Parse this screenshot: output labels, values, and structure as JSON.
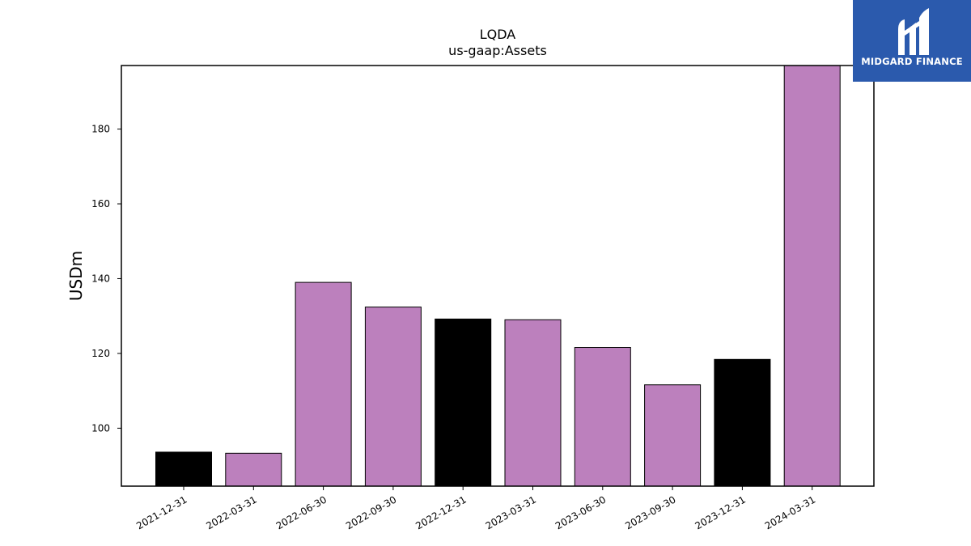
{
  "chart_data": {
    "type": "bar",
    "title": "LQDA",
    "subtitle": "us-gaap:Assets",
    "xlabel": "",
    "ylabel": "USDm",
    "categories": [
      "2021-12-31",
      "2022-03-31",
      "2022-06-30",
      "2022-09-30",
      "2022-12-31",
      "2023-03-31",
      "2023-06-30",
      "2023-09-30",
      "2023-12-31",
      "2024-03-31"
    ],
    "values": [
      93.6,
      93.3,
      139.0,
      132.4,
      129.2,
      129.0,
      121.6,
      111.6,
      118.4,
      197.0
    ],
    "bar_colors": [
      "#000000",
      "#bc80bd",
      "#bc80bd",
      "#bc80bd",
      "#000000",
      "#bc80bd",
      "#bc80bd",
      "#bc80bd",
      "#000000",
      "#bc80bd"
    ],
    "ylim": [
      84.5,
      197
    ],
    "yticks": [
      100,
      120,
      140,
      160,
      180
    ],
    "grid": false,
    "legend": "none"
  },
  "logo": {
    "text": "MIDGARD FINANCE",
    "background": "#2b5aad",
    "text_color": "#ffffff"
  }
}
